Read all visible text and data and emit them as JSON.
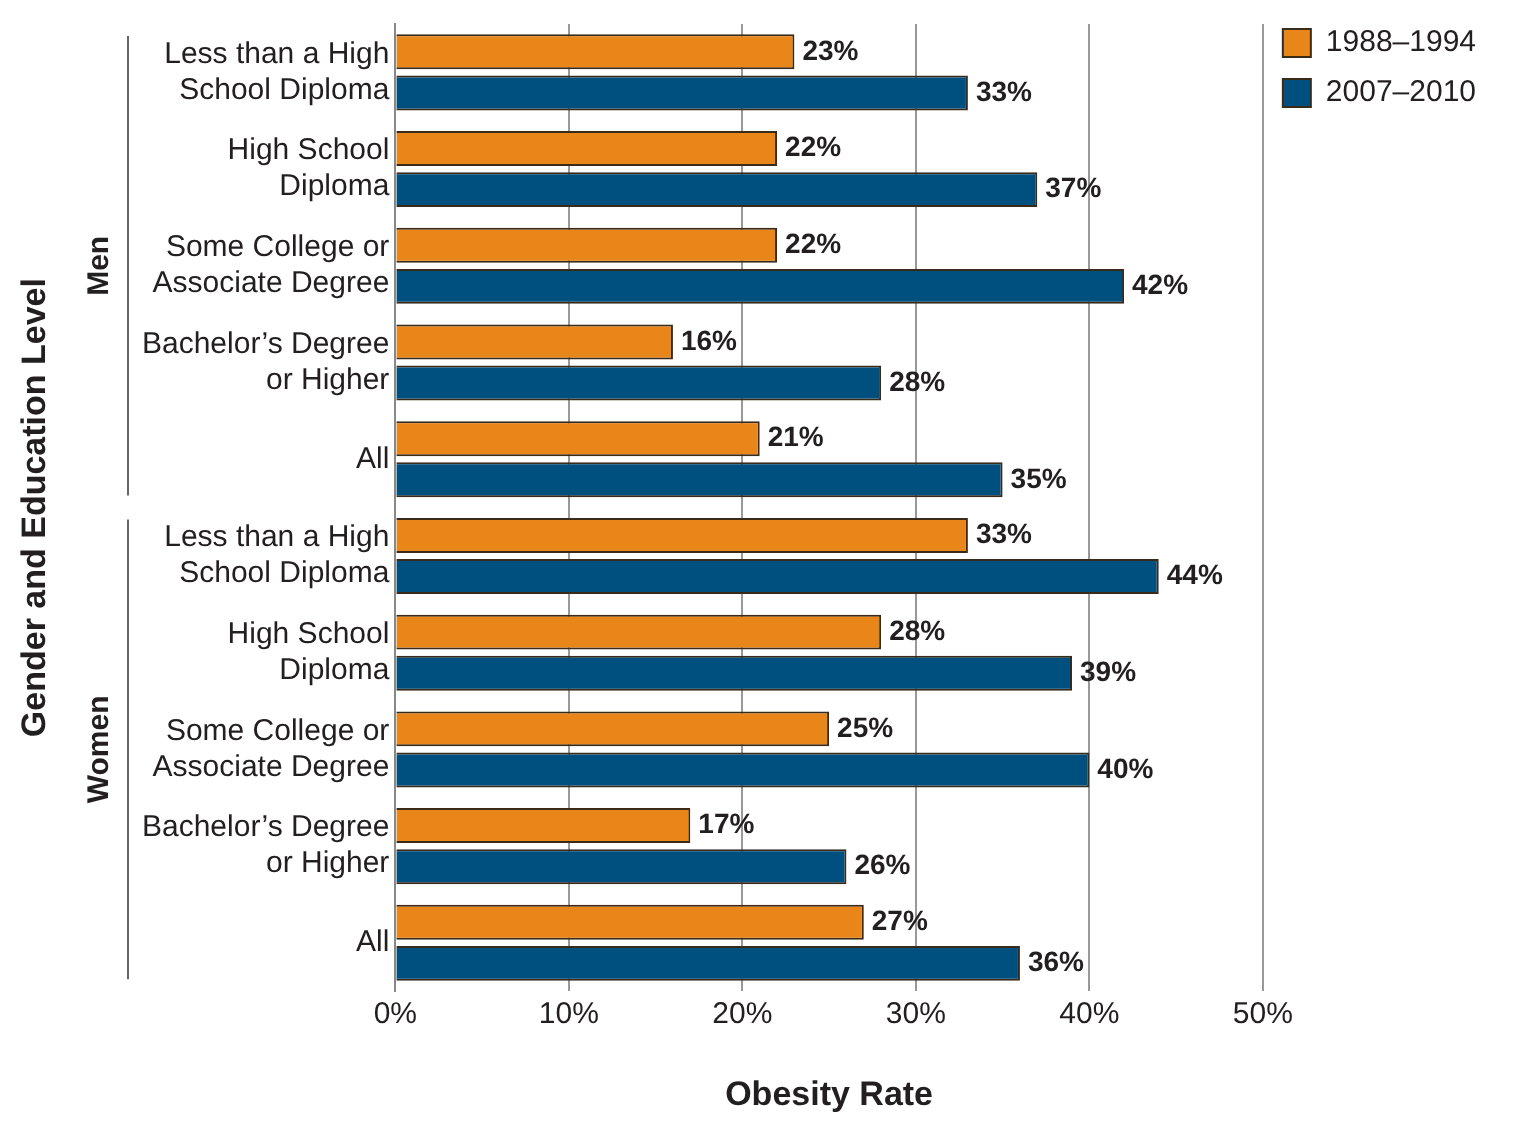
{
  "chart_data": {
    "type": "bar",
    "orientation": "horizontal",
    "xlabel": "Obesity Rate",
    "ylabel": "Gender and Education Level",
    "categories": [
      "Less than a High School Diploma",
      "High School Diploma",
      "Some College or Associate Degree",
      "Bachelor’s Degree or Higher",
      "All",
      "Less than a High School Diploma",
      "High School Diploma",
      "Some College or Associate Degree",
      "Bachelor’s Degree or Higher",
      "All"
    ],
    "series": [
      {
        "name": "1988–1994",
        "color": "#e8861a",
        "values": [
          23,
          22,
          22,
          16,
          21,
          33,
          28,
          25,
          17,
          27
        ],
        "value_labels": [
          "23%",
          "22%",
          "22%",
          "16%",
          "21%",
          "33%",
          "28%",
          "25%",
          "17%",
          "27%"
        ]
      },
      {
        "name": "2007–2010",
        "color": "#00507f",
        "values": [
          33,
          37,
          42,
          28,
          35,
          44,
          39,
          40,
          26,
          36
        ],
        "value_labels": [
          "33%",
          "37%",
          "42%",
          "28%",
          "35%",
          "44%",
          "39%",
          "40%",
          "26%",
          "36%"
        ]
      }
    ],
    "xlim": [
      0,
      50
    ],
    "xticks": [
      {
        "value": 0,
        "label": "0%"
      },
      {
        "value": 10,
        "label": "10%"
      },
      {
        "value": 20,
        "label": "20%"
      },
      {
        "value": 30,
        "label": "30%"
      },
      {
        "value": 40,
        "label": "40%"
      },
      {
        "value": 50,
        "label": "50%"
      }
    ],
    "grid": "x",
    "legend": "top right",
    "annotations": [
      "Men",
      "Women"
    ]
  }
}
